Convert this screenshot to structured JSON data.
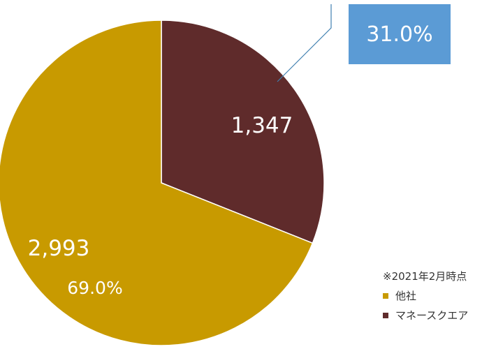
{
  "chart_data": {
    "type": "pie",
    "categories": [
      "他社",
      "マネースクエア"
    ],
    "values": [
      2993,
      1347
    ],
    "value_labels": [
      "2,993",
      "1,347"
    ],
    "percent_labels": [
      "69.0%",
      "31.0%"
    ],
    "colors": [
      "#c89a00",
      "#5f2b2b"
    ],
    "note": "※2021年2月時点",
    "legend_position": "bottom-right",
    "callout": {
      "text": "31.0%",
      "fill": "#5b9bd5",
      "text_color": "#ffffff",
      "line_color": "#3f7fb0"
    }
  }
}
